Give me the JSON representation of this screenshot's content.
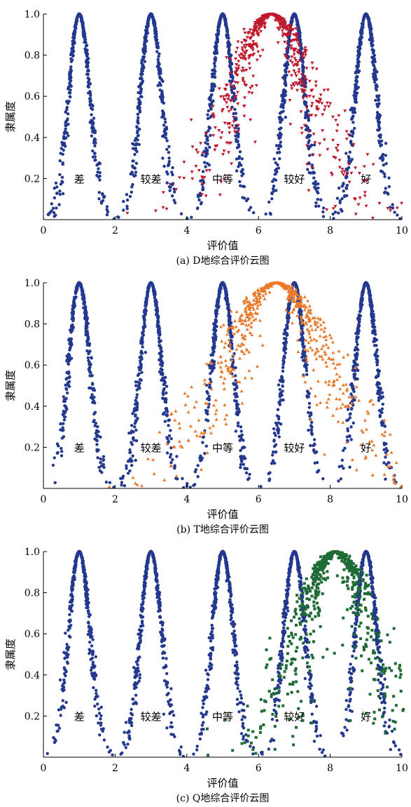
{
  "chart_data": [
    {
      "type": "scatter",
      "caption": "(a) D地综合评价云图",
      "xlabel": "评价值",
      "ylabel": "隶属度",
      "xlim": [
        0,
        10
      ],
      "ylim": [
        0,
        1.0
      ],
      "x_ticks": [
        "0",
        "2",
        "4",
        "6",
        "8",
        "10"
      ],
      "y_ticks": [
        "0.2",
        "0.4",
        "0.6",
        "0.8",
        "1.0"
      ],
      "region_labels": [
        {
          "text": "差",
          "x": 1.0,
          "y": 0.18
        },
        {
          "text": "较差",
          "x": 3.0,
          "y": 0.18
        },
        {
          "text": "中等",
          "x": 5.0,
          "y": 0.18
        },
        {
          "text": "较好",
          "x": 7.0,
          "y": 0.18
        },
        {
          "text": "好",
          "x": 9.0,
          "y": 0.18
        }
      ],
      "standard_clouds": {
        "color": "#23388e",
        "marker": "circle",
        "Ex": [
          1,
          3,
          5,
          7,
          9
        ],
        "En": 0.3,
        "He": 0.03,
        "drops_per_cloud": 420
      },
      "result_cloud": {
        "color": "#c0182c",
        "marker": "triangle-down",
        "Ex": 6.35,
        "En": 1.1,
        "He": 0.28,
        "drops": 620
      }
    },
    {
      "type": "scatter",
      "caption": "(b) T地综合评价云图",
      "xlabel": "评价值",
      "ylabel": "隶属度",
      "xlim": [
        0,
        10
      ],
      "ylim": [
        0,
        1.0
      ],
      "x_ticks": [
        "0",
        "2",
        "4",
        "6",
        "8",
        "10"
      ],
      "y_ticks": [
        "0.2",
        "0.4",
        "0.6",
        "0.8",
        "1.0"
      ],
      "region_labels": [
        {
          "text": "差",
          "x": 1.0,
          "y": 0.18
        },
        {
          "text": "较差",
          "x": 3.0,
          "y": 0.18
        },
        {
          "text": "中等",
          "x": 5.0,
          "y": 0.18
        },
        {
          "text": "较好",
          "x": 7.0,
          "y": 0.18
        },
        {
          "text": "好",
          "x": 9.0,
          "y": 0.18
        }
      ],
      "standard_clouds": {
        "color": "#23388e",
        "marker": "circle",
        "Ex": [
          1,
          3,
          5,
          7,
          9
        ],
        "En": 0.3,
        "He": 0.03,
        "drops_per_cloud": 420
      },
      "result_cloud": {
        "color": "#ea7a2a",
        "marker": "triangle-up",
        "Ex": 6.5,
        "En": 1.4,
        "He": 0.35,
        "drops": 620
      }
    },
    {
      "type": "scatter",
      "caption": "(c) Q地综合评价云图",
      "xlabel": "评价值",
      "ylabel": "隶属度",
      "xlim": [
        0,
        10
      ],
      "ylim": [
        0,
        1.0
      ],
      "x_ticks": [
        "0",
        "2",
        "4",
        "6",
        "8",
        "10"
      ],
      "y_ticks": [
        "0.2",
        "0.4",
        "0.6",
        "0.8",
        "1.0"
      ],
      "region_labels": [
        {
          "text": "差",
          "x": 1.0,
          "y": 0.18
        },
        {
          "text": "较差",
          "x": 3.0,
          "y": 0.18
        },
        {
          "text": "中等",
          "x": 5.0,
          "y": 0.18
        },
        {
          "text": "较好",
          "x": 7.0,
          "y": 0.18
        },
        {
          "text": "好",
          "x": 9.0,
          "y": 0.18
        }
      ],
      "standard_clouds": {
        "color": "#23388e",
        "marker": "circle",
        "Ex": [
          1,
          3,
          5,
          7,
          9
        ],
        "En": 0.3,
        "He": 0.03,
        "drops_per_cloud": 420
      },
      "result_cloud": {
        "color": "#1f6b35",
        "marker": "square",
        "Ex": 8.15,
        "En": 1.0,
        "He": 0.3,
        "drops": 620
      }
    }
  ]
}
